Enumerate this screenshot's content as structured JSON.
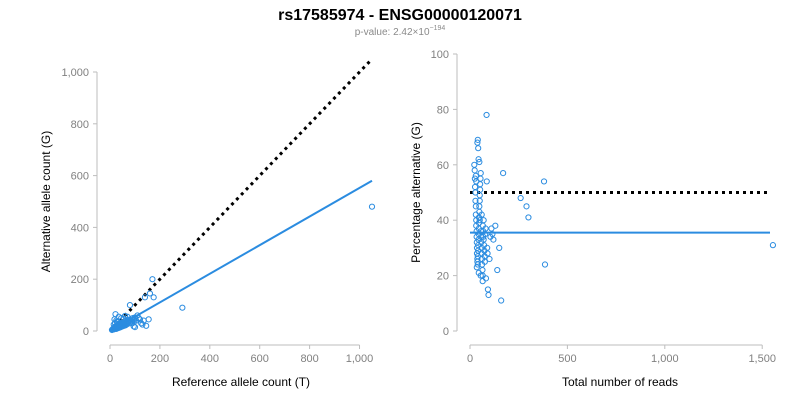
{
  "figure": {
    "title": "rs17585974 - ENSG00000120071",
    "subtitle_prefix": "p-value: 2.42×10",
    "subtitle_exponent": "−194"
  },
  "colors": {
    "points": "#2b8ce0",
    "fit_line": "#2b8ce0",
    "reference_line": "#000000",
    "axis": "#bdbdbd",
    "tick_label": "#808080"
  },
  "chart_data": [
    {
      "type": "scatter",
      "id": "allele-counts",
      "xlabel": "Reference allele count (T)",
      "ylabel": "Alternative allele count (G)",
      "xlim": [
        0,
        1050
      ],
      "ylim": [
        0,
        1000
      ],
      "x_ticks": [
        0,
        200,
        400,
        600,
        800,
        1000
      ],
      "x_tick_labels": [
        "0",
        "200",
        "400",
        "600",
        "800",
        "1,000"
      ],
      "y_ticks": [
        0,
        200,
        400,
        600,
        800,
        1000
      ],
      "y_tick_labels": [
        "0",
        "200",
        "400",
        "600",
        "800",
        "1,000"
      ],
      "grid": false,
      "points": [
        [
          8,
          4
        ],
        [
          10,
          6
        ],
        [
          12,
          8
        ],
        [
          14,
          10
        ],
        [
          15,
          6
        ],
        [
          16,
          12
        ],
        [
          18,
          9
        ],
        [
          18,
          14
        ],
        [
          20,
          10
        ],
        [
          20,
          16
        ],
        [
          22,
          12
        ],
        [
          22,
          18
        ],
        [
          24,
          14
        ],
        [
          25,
          8
        ],
        [
          25,
          20
        ],
        [
          26,
          15
        ],
        [
          28,
          18
        ],
        [
          28,
          10
        ],
        [
          30,
          12
        ],
        [
          30,
          22
        ],
        [
          32,
          16
        ],
        [
          32,
          24
        ],
        [
          34,
          18
        ],
        [
          35,
          12
        ],
        [
          35,
          28
        ],
        [
          36,
          20
        ],
        [
          38,
          16
        ],
        [
          38,
          26
        ],
        [
          40,
          14
        ],
        [
          40,
          22
        ],
        [
          42,
          30
        ],
        [
          44,
          20
        ],
        [
          45,
          16
        ],
        [
          46,
          26
        ],
        [
          48,
          22
        ],
        [
          50,
          30
        ],
        [
          50,
          18
        ],
        [
          52,
          24
        ],
        [
          55,
          28
        ],
        [
          56,
          20
        ],
        [
          58,
          34
        ],
        [
          60,
          26
        ],
        [
          62,
          22
        ],
        [
          65,
          36
        ],
        [
          66,
          30
        ],
        [
          68,
          26
        ],
        [
          70,
          40
        ],
        [
          72,
          32
        ],
        [
          75,
          36
        ],
        [
          78,
          44
        ],
        [
          80,
          30
        ],
        [
          82,
          42
        ],
        [
          85,
          38
        ],
        [
          88,
          48
        ],
        [
          90,
          36
        ],
        [
          92,
          50
        ],
        [
          95,
          44
        ],
        [
          98,
          40
        ],
        [
          100,
          52
        ],
        [
          20,
          30
        ],
        [
          25,
          40
        ],
        [
          30,
          35
        ],
        [
          15,
          25
        ],
        [
          18,
          45
        ],
        [
          22,
          65
        ],
        [
          35,
          55
        ],
        [
          45,
          50
        ],
        [
          55,
          48
        ],
        [
          60,
          58
        ],
        [
          70,
          55
        ],
        [
          80,
          100
        ],
        [
          90,
          30
        ],
        [
          95,
          18
        ],
        [
          100,
          15
        ],
        [
          105,
          40
        ],
        [
          110,
          60
        ],
        [
          115,
          50
        ],
        [
          120,
          45
        ],
        [
          125,
          30
        ],
        [
          130,
          25
        ],
        [
          135,
          40
        ],
        [
          140,
          130
        ],
        [
          145,
          20
        ],
        [
          155,
          45
        ],
        [
          160,
          145
        ],
        [
          170,
          200
        ],
        [
          175,
          130
        ],
        [
          290,
          90
        ],
        [
          1050,
          480
        ],
        [
          28,
          36
        ]
      ],
      "fit_line": {
        "x": [
          0,
          1050
        ],
        "y": [
          0,
          580
        ]
      },
      "reference_line": {
        "x": [
          0,
          1050
        ],
        "y": [
          0,
          1050
        ]
      }
    },
    {
      "type": "scatter",
      "id": "percentage-alternative",
      "xlabel": "Total number of reads",
      "ylabel": "Percentage alternative (G)",
      "xlim": [
        0,
        1540
      ],
      "ylim": [
        0,
        100
      ],
      "x_ticks": [
        0,
        500,
        1000,
        1500
      ],
      "x_tick_labels": [
        "0",
        "500",
        "1,000",
        "1,500"
      ],
      "y_ticks": [
        0,
        20,
        40,
        60,
        80,
        100
      ],
      "y_tick_labels": [
        "0",
        "20",
        "40",
        "60",
        "80",
        "100"
      ],
      "grid": false,
      "points": [
        [
          22,
          60
        ],
        [
          24,
          58
        ],
        [
          25,
          55
        ],
        [
          26,
          52
        ],
        [
          28,
          50
        ],
        [
          28,
          47
        ],
        [
          30,
          45
        ],
        [
          30,
          42
        ],
        [
          32,
          40
        ],
        [
          32,
          38
        ],
        [
          34,
          36
        ],
        [
          34,
          34
        ],
        [
          35,
          32
        ],
        [
          36,
          30
        ],
        [
          36,
          28
        ],
        [
          38,
          26
        ],
        [
          38,
          25
        ],
        [
          40,
          24
        ],
        [
          40,
          27
        ],
        [
          42,
          29
        ],
        [
          42,
          31
        ],
        [
          44,
          33
        ],
        [
          44,
          35
        ],
        [
          45,
          37
        ],
        [
          46,
          39
        ],
        [
          46,
          41
        ],
        [
          48,
          43
        ],
        [
          48,
          45
        ],
        [
          50,
          47
        ],
        [
          50,
          49
        ],
        [
          52,
          51
        ],
        [
          52,
          53
        ],
        [
          54,
          55
        ],
        [
          55,
          57
        ],
        [
          56,
          36
        ],
        [
          58,
          34
        ],
        [
          58,
          32
        ],
        [
          60,
          30
        ],
        [
          60,
          28
        ],
        [
          62,
          26
        ],
        [
          62,
          24
        ],
        [
          64,
          22
        ],
        [
          65,
          20
        ],
        [
          66,
          38
        ],
        [
          68,
          36
        ],
        [
          68,
          34
        ],
        [
          70,
          40
        ],
        [
          70,
          33
        ],
        [
          72,
          31
        ],
        [
          74,
          29
        ],
        [
          75,
          27
        ],
        [
          76,
          25
        ],
        [
          78,
          35
        ],
        [
          80,
          37
        ],
        [
          82,
          19
        ],
        [
          85,
          78
        ],
        [
          86,
          54
        ],
        [
          88,
          30
        ],
        [
          90,
          28
        ],
        [
          92,
          15
        ],
        [
          95,
          13
        ],
        [
          100,
          26
        ],
        [
          105,
          34
        ],
        [
          110,
          37
        ],
        [
          115,
          35
        ],
        [
          120,
          33
        ],
        [
          130,
          38
        ],
        [
          140,
          22
        ],
        [
          150,
          30
        ],
        [
          160,
          11
        ],
        [
          170,
          57
        ],
        [
          260,
          48
        ],
        [
          290,
          45
        ],
        [
          300,
          41
        ],
        [
          380,
          54
        ],
        [
          385,
          24
        ],
        [
          1555,
          31
        ],
        [
          38,
          68
        ],
        [
          40,
          69
        ],
        [
          42,
          66
        ],
        [
          44,
          62
        ],
        [
          48,
          61
        ],
        [
          30,
          56
        ],
        [
          32,
          54
        ],
        [
          35,
          23
        ],
        [
          45,
          21
        ],
        [
          55,
          20
        ],
        [
          65,
          18
        ],
        [
          50,
          40
        ],
        [
          60,
          42
        ]
      ],
      "fit_line": {
        "x": [
          0,
          1540
        ],
        "y": [
          35.5,
          35.5
        ]
      },
      "reference_line": {
        "x": [
          0,
          1540
        ],
        "y": [
          50,
          50
        ]
      }
    }
  ]
}
